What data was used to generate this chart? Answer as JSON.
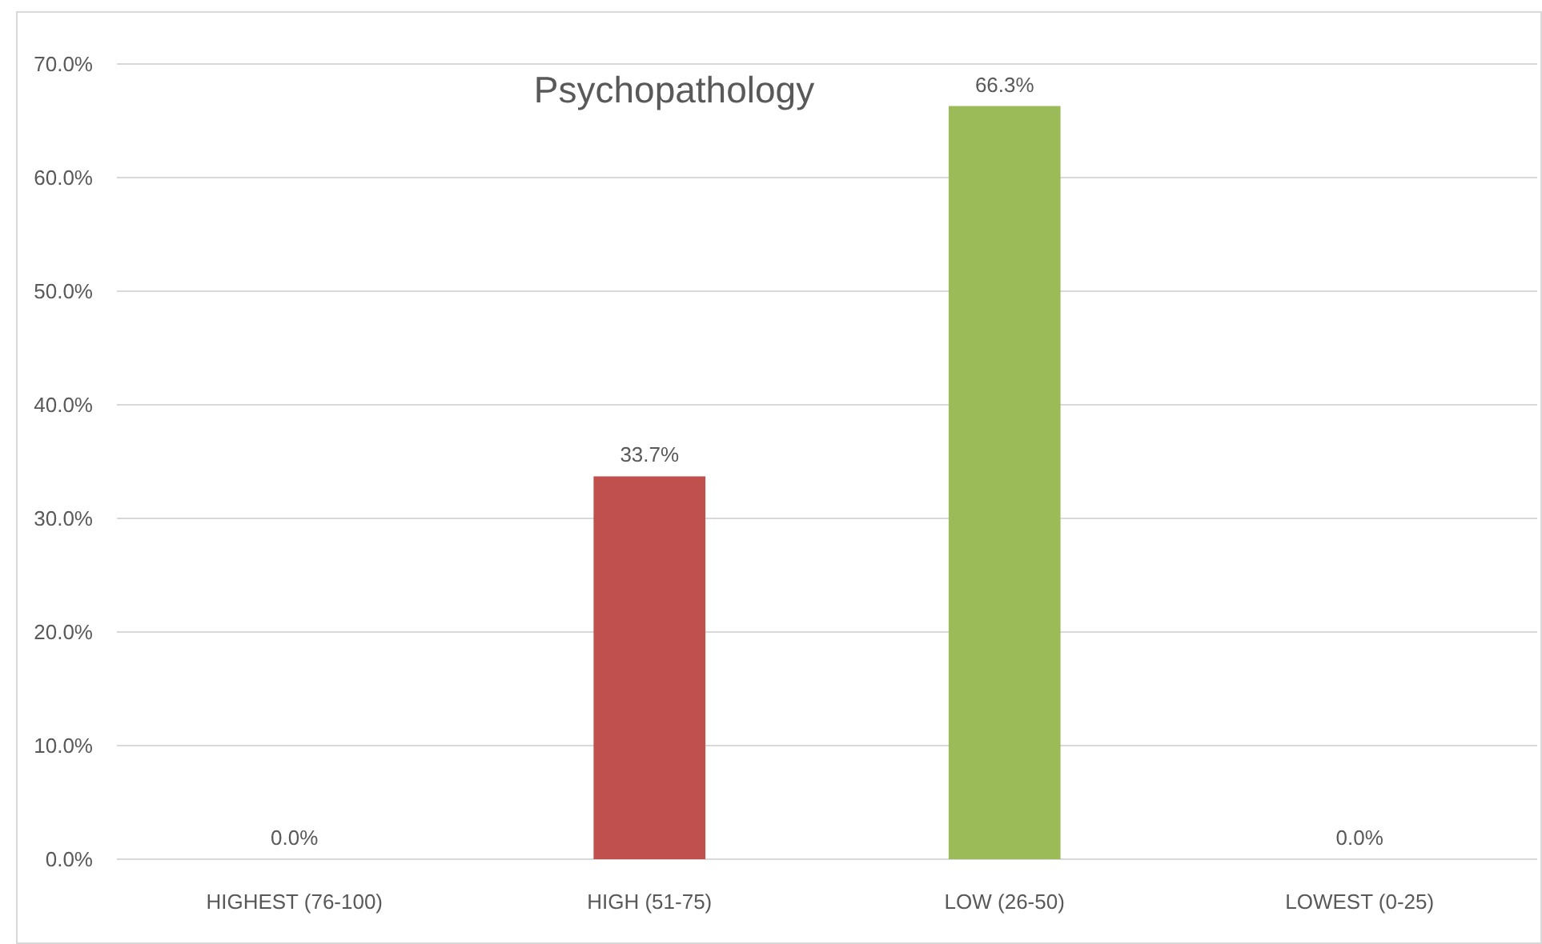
{
  "chart_data": {
    "type": "bar",
    "title": "Psychopathology",
    "categories": [
      "HIGHEST (76-100)",
      "HIGH (51-75)",
      "LOW (26-50)",
      "LOWEST (0-25)"
    ],
    "values": [
      0,
      33.7,
      66.3,
      0
    ],
    "colors": [
      "#4f81bd",
      "#c0504d",
      "#9bbb59",
      "#8064a2"
    ],
    "value_labels": [
      "0.0%",
      "33.7%",
      "66.3%",
      "0.0%"
    ],
    "ylim": [
      0,
      70
    ],
    "yticks": [
      {
        "value": 0,
        "label": "0.0%"
      },
      {
        "value": 10,
        "label": "10.0%"
      },
      {
        "value": 20,
        "label": "20.0%"
      },
      {
        "value": 30,
        "label": "30.0%"
      },
      {
        "value": 40,
        "label": "40.0%"
      },
      {
        "value": 50,
        "label": "50.0%"
      },
      {
        "value": 60,
        "label": "60.0%"
      },
      {
        "value": 70,
        "label": "70.0%"
      }
    ],
    "grid": "y"
  }
}
